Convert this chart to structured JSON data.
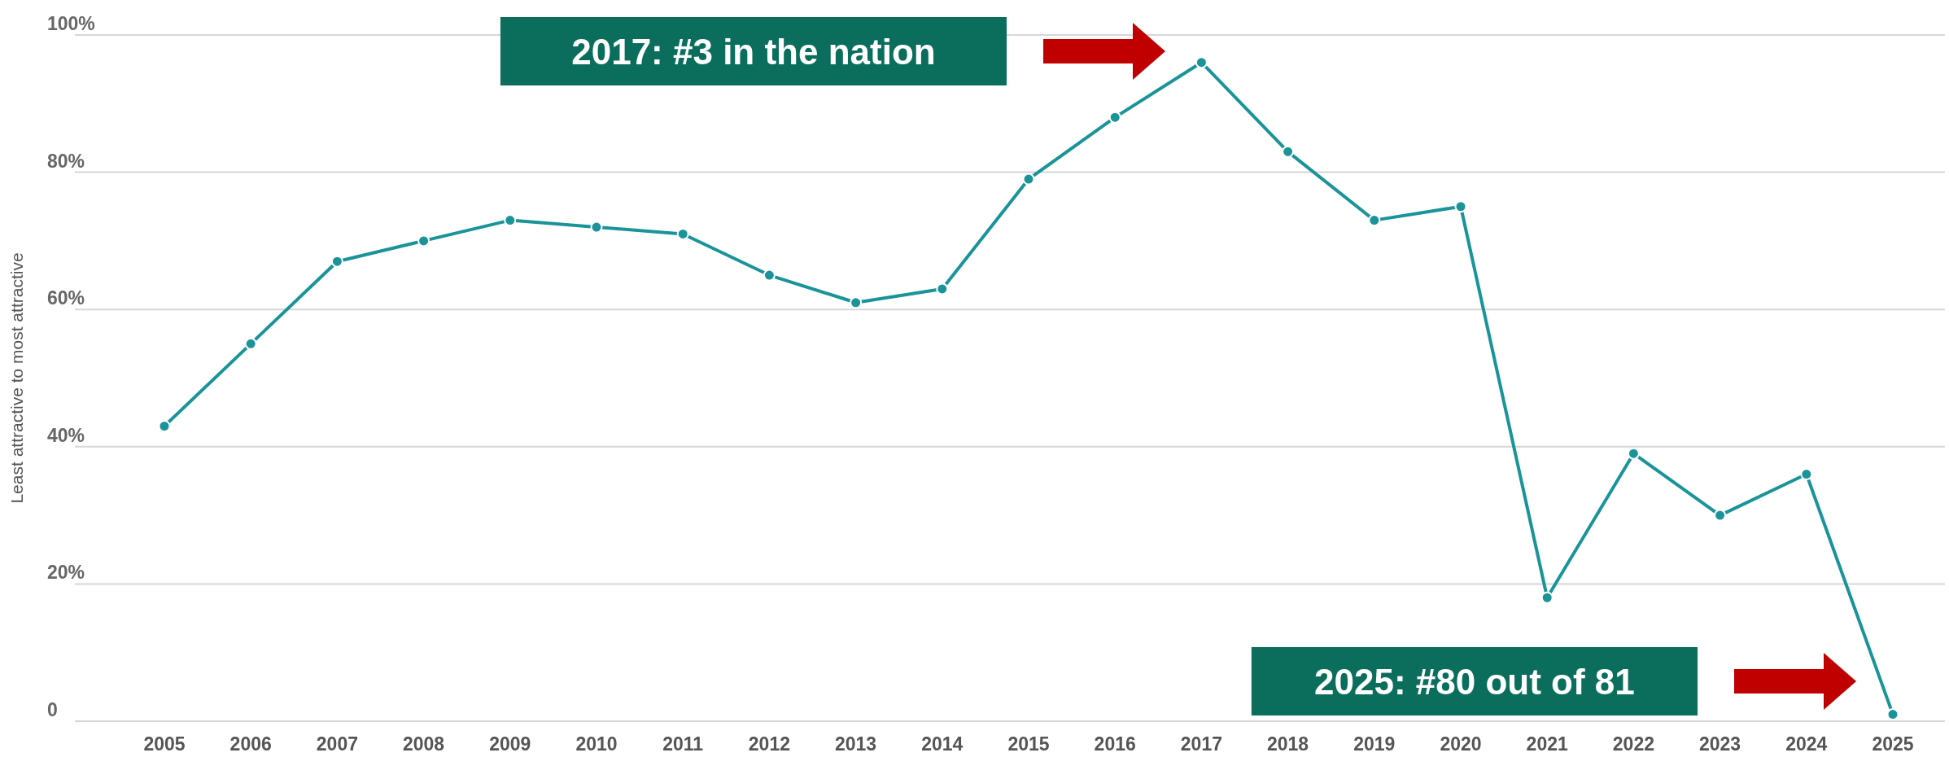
{
  "chart_data": {
    "type": "line",
    "ylabel": "Least attractive to most attractive",
    "categories": [
      "2005",
      "2006",
      "2007",
      "2008",
      "2009",
      "2010",
      "2011",
      "2012",
      "2013",
      "2014",
      "2015",
      "2016",
      "2017",
      "2018",
      "2019",
      "2020",
      "2021",
      "2022",
      "2023",
      "2024",
      "2025"
    ],
    "series": [
      {
        "color": "#1a9499",
        "values": [
          43,
          55,
          67,
          70,
          73,
          72,
          71,
          65,
          61,
          63,
          79,
          88,
          96,
          83,
          73,
          75,
          18,
          39,
          30,
          36,
          1
        ]
      }
    ],
    "ylim": [
      0,
      100
    ],
    "yticks": [
      0,
      {
        "value": 20,
        "label": "20%"
      },
      {
        "value": 40,
        "label": "40%"
      },
      {
        "value": 60,
        "label": "60%"
      },
      {
        "value": 80,
        "label": "80%"
      },
      {
        "value": 100,
        "label": "100%"
      }
    ],
    "grid": "y",
    "marker": "circle",
    "line_style": "solid",
    "annotations": [
      "2017: #3 in the nation",
      "2025: #80 out of 81"
    ]
  }
}
